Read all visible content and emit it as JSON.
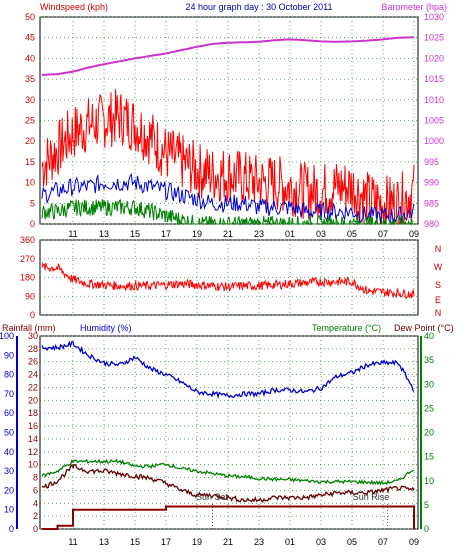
{
  "header": {
    "left_label": "Windspeed (kph)",
    "title": "24 hour graph day : 30 October 2011",
    "right_label": "Barometer (hpa)"
  },
  "colors": {
    "wind_gust": "#ff0000",
    "wind_avg": "#0000cc",
    "wind_low": "#008000",
    "barometer": "#cc33cc",
    "direction": "#ff0000",
    "humidity": "#0000cc",
    "temperature": "#008000",
    "dewpoint": "#660000",
    "rainfall": "#880000",
    "left_text": "#cc0000",
    "title_text": "#0000aa"
  },
  "x_ticks": [
    "11",
    "13",
    "15",
    "17",
    "19",
    "21",
    "23",
    "01",
    "03",
    "05",
    "07",
    "09"
  ],
  "direction_labels": [
    "N",
    "W",
    "S",
    "E",
    "N"
  ],
  "bottom_labels": {
    "rainfall": "Rainfall (mm)",
    "humidity": "Humidity (%)",
    "temperature": "Temperature (°C)",
    "dewpoint": "Dew Point (°C)"
  },
  "sun_labels": {
    "set": "Sun Set",
    "rise": "Sun Rise"
  },
  "chart_data": [
    {
      "type": "line",
      "x": [
        "09:00",
        "10:00",
        "11:00",
        "12:00",
        "13:00",
        "14:00",
        "15:00",
        "16:00",
        "17:00",
        "18:00",
        "19:00",
        "20:00",
        "21:00",
        "22:00",
        "23:00",
        "00:00",
        "01:00",
        "02:00",
        "03:00",
        "04:00",
        "05:00",
        "06:00",
        "07:00",
        "08:00",
        "09:00"
      ],
      "series": [
        {
          "name": "Windspeed (kph)",
          "axis": "left",
          "values": [
            14,
            18,
            22,
            24,
            25,
            26,
            24,
            21,
            17,
            15,
            13,
            12,
            12,
            11,
            10,
            10,
            9,
            8,
            8,
            9,
            9,
            6,
            5,
            5,
            8
          ]
        },
        {
          "name": "Windspeed (kph)",
          "axis": "left",
          "values": [
            7,
            8,
            9,
            9,
            10,
            10,
            10,
            9,
            8,
            7,
            6,
            5,
            5,
            5,
            4,
            4,
            4,
            3,
            3,
            3,
            3,
            2,
            2,
            2,
            3
          ]
        },
        {
          "name": "Windspeed (kph)",
          "axis": "left",
          "values": [
            3,
            3,
            4,
            4,
            4,
            4,
            4,
            3,
            2,
            1,
            0,
            0,
            0,
            0,
            0,
            0,
            0,
            0,
            0,
            0,
            0,
            0,
            0,
            0,
            0
          ]
        },
        {
          "name": "Barometer (hpa)",
          "axis": "right",
          "values": [
            1016,
            1016.2,
            1016.8,
            1017.8,
            1018.6,
            1019.3,
            1020,
            1020.6,
            1021.2,
            1022,
            1022.8,
            1023.5,
            1023.8,
            1023.9,
            1024,
            1024.4,
            1024.6,
            1024.4,
            1024.1,
            1024,
            1024.1,
            1024.3,
            1024.6,
            1025,
            1025.1
          ]
        }
      ],
      "left_axis": {
        "label": "Windspeed (kph)",
        "ylim": [
          0,
          50
        ],
        "ticks": [
          0,
          5,
          10,
          15,
          20,
          25,
          30,
          35,
          40,
          45,
          50
        ]
      },
      "right_axis": {
        "label": "Barometer (hpa)",
        "ylim": [
          980,
          1030
        ],
        "ticks": [
          980,
          985,
          990,
          995,
          1000,
          1005,
          1010,
          1015,
          1020,
          1025,
          1030
        ]
      },
      "grid": true
    },
    {
      "type": "line",
      "x": [
        "09:00",
        "10:00",
        "11:00",
        "12:00",
        "13:00",
        "14:00",
        "15:00",
        "16:00",
        "17:00",
        "18:00",
        "19:00",
        "20:00",
        "21:00",
        "22:00",
        "23:00",
        "00:00",
        "01:00",
        "02:00",
        "03:00",
        "04:00",
        "05:00",
        "06:00",
        "07:00",
        "08:00",
        "09:00"
      ],
      "series": [
        {
          "values": [
            230,
            225,
            170,
            150,
            145,
            140,
            140,
            140,
            145,
            150,
            145,
            140,
            135,
            140,
            140,
            145,
            150,
            155,
            160,
            160,
            160,
            115,
            110,
            105,
            100
          ]
        }
      ],
      "ylim": [
        0,
        360
      ],
      "ticks": [
        0,
        90,
        180,
        270,
        360
      ],
      "grid": true
    },
    {
      "type": "line",
      "x": [
        "09:00",
        "10:00",
        "11:00",
        "12:00",
        "13:00",
        "14:00",
        "15:00",
        "16:00",
        "17:00",
        "18:00",
        "19:00",
        "20:00",
        "21:00",
        "22:00",
        "23:00",
        "00:00",
        "01:00",
        "02:00",
        "03:00",
        "04:00",
        "05:00",
        "06:00",
        "07:00",
        "08:00",
        "09:00"
      ],
      "series": [
        {
          "name": "Humidity (%)",
          "axis": "humidity",
          "values": [
            94,
            94,
            96,
            90,
            86,
            85,
            89,
            83,
            80,
            76,
            71,
            70,
            69,
            70,
            70,
            72,
            72,
            71,
            73,
            79,
            81,
            85,
            86,
            86,
            72
          ]
        },
        {
          "name": "Temperature (°C)",
          "axis": "temperature",
          "values": [
            11,
            12,
            14,
            14,
            14,
            14,
            13,
            13,
            13.5,
            12.5,
            12,
            11.5,
            11,
            10.8,
            10.5,
            10.3,
            10.2,
            10,
            9.8,
            9.8,
            9.8,
            9.7,
            9.5,
            10,
            12.5
          ]
        },
        {
          "name": "Dew Point (°C)",
          "axis": "temperature",
          "values": [
            8.5,
            10,
            13,
            12,
            12,
            11.5,
            11,
            10.5,
            9.5,
            8,
            7,
            7,
            6.5,
            6,
            6,
            6.5,
            6.5,
            6.5,
            7,
            7.5,
            7.5,
            7.5,
            8,
            8.5,
            8
          ]
        },
        {
          "name": "Rainfall (mm)",
          "axis": "rainfall",
          "values": [
            0,
            0.5,
            3,
            3,
            3,
            3,
            3,
            3,
            3.5,
            3.5,
            3.5,
            3.5,
            3.5,
            3.5,
            3.5,
            3.5,
            3.5,
            3.5,
            3.5,
            3.5,
            3.5,
            3.5,
            3.5,
            3.5,
            0
          ]
        }
      ],
      "humidity_axis": {
        "ylim": [
          0,
          100
        ],
        "ticks": [
          0,
          10,
          20,
          30,
          40,
          50,
          60,
          70,
          80,
          90,
          100
        ]
      },
      "rainfall_axis": {
        "ylim": [
          0,
          30
        ],
        "ticks": [
          0,
          2,
          4,
          6,
          8,
          10,
          12,
          14,
          16,
          18,
          20,
          22,
          24,
          26,
          28,
          30
        ]
      },
      "temperature_axis": {
        "ylim": [
          0,
          40
        ],
        "ticks": [
          0,
          5,
          10,
          15,
          20,
          25,
          30,
          35,
          40
        ]
      },
      "annotations": [
        "Sun Set",
        "Sun Rise"
      ],
      "grid": true
    }
  ]
}
